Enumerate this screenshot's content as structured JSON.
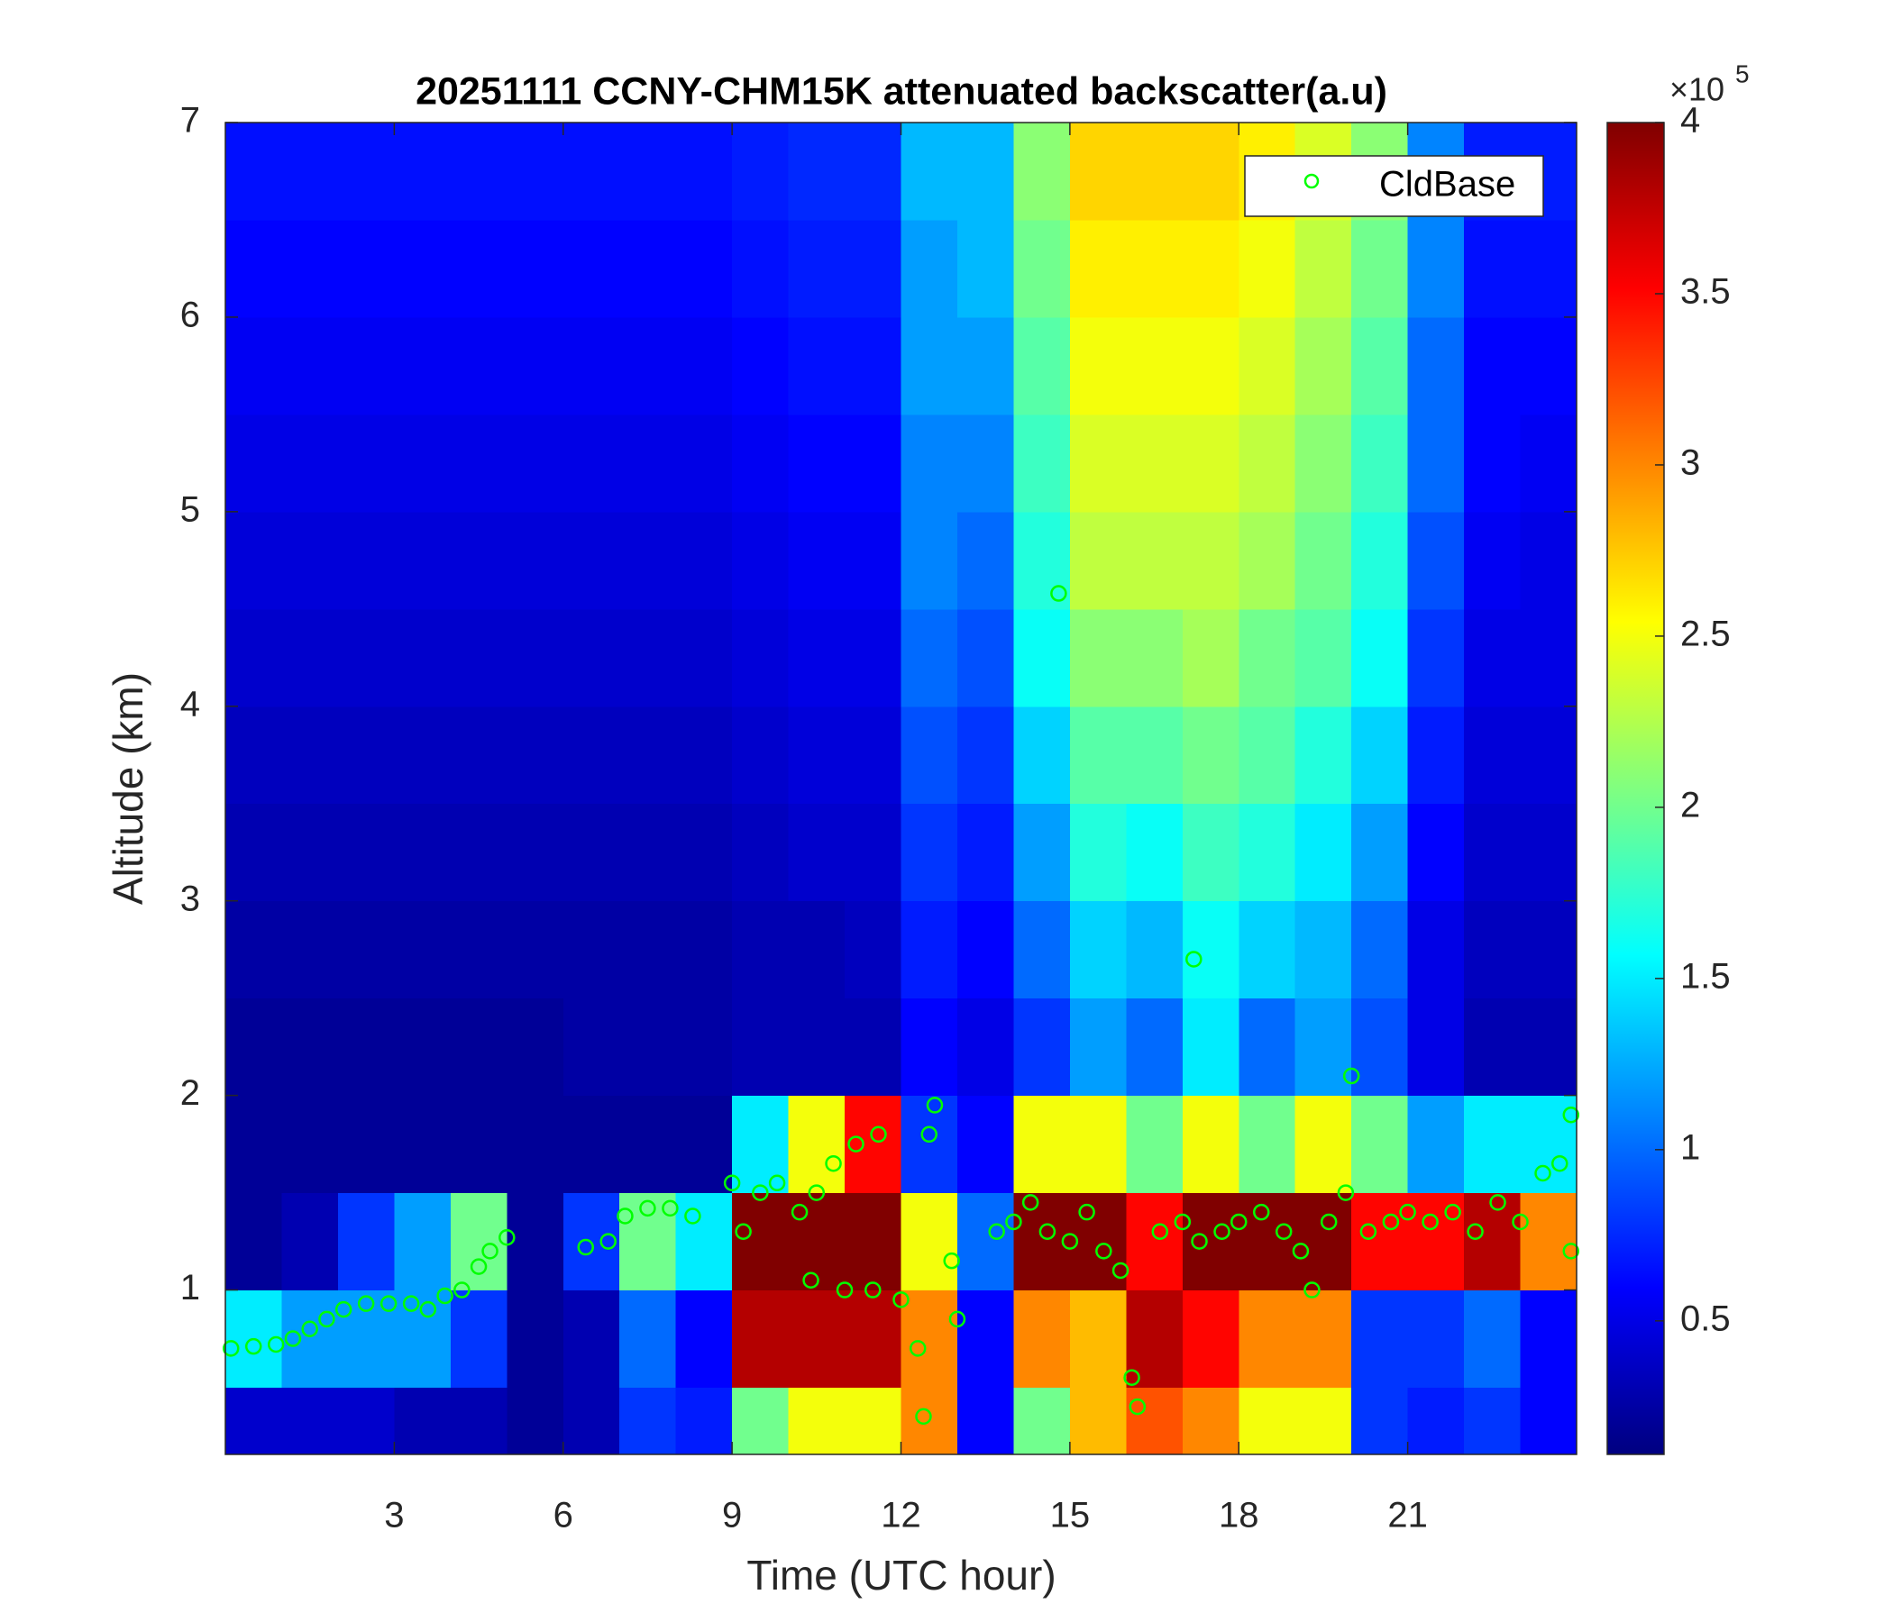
{
  "chart_data": {
    "type": "heatmap",
    "title": "20251111 CCNY-CHM15K attenuated backscatter(a.u)",
    "xlabel": "Time (UTC hour)",
    "ylabel": "Altitude (km)",
    "xlim": [
      0,
      24
    ],
    "xticks": [
      3,
      6,
      9,
      12,
      15,
      18,
      21
    ],
    "ylim": [
      0.155,
      7
    ],
    "yticks": [
      1,
      2,
      3,
      4,
      5,
      6,
      7
    ],
    "x_bins": [
      0,
      1,
      2,
      3,
      4,
      5,
      6,
      7,
      8,
      9,
      10,
      11,
      12,
      13,
      14,
      15,
      16,
      17,
      18,
      19,
      20,
      21,
      22,
      23,
      24
    ],
    "y_bins": [
      0.155,
      0.5,
      1,
      1.5,
      2,
      2.5,
      3,
      3.5,
      4,
      4.5,
      5,
      5.5,
      6,
      6.5,
      7
    ],
    "values": [
      [
        0.4,
        0.4,
        0.4,
        0.3,
        0.3,
        0.2,
        0.3,
        0.8,
        0.7,
        2.0,
        2.5,
        2.5,
        3.0,
        0.6,
        2.0,
        2.8,
        3.2,
        3.0,
        2.5,
        2.5,
        0.8,
        0.7,
        0.8,
        0.6
      ],
      [
        1.5,
        1.2,
        1.2,
        1.2,
        0.8,
        0.2,
        0.3,
        1.0,
        0.6,
        3.8,
        3.8,
        3.8,
        3.0,
        0.6,
        3.0,
        2.8,
        3.8,
        3.5,
        3.0,
        3.0,
        0.8,
        0.8,
        1.0,
        0.6
      ],
      [
        0.2,
        0.3,
        0.8,
        1.2,
        2.0,
        0.2,
        0.8,
        2.0,
        1.5,
        4.0,
        4.0,
        4.0,
        2.5,
        1.0,
        4.0,
        4.0,
        3.5,
        4.0,
        4.0,
        4.0,
        3.5,
        3.5,
        3.8,
        3.0
      ],
      [
        0.2,
        0.2,
        0.2,
        0.2,
        0.2,
        0.2,
        0.2,
        0.2,
        0.2,
        1.5,
        2.5,
        3.5,
        0.8,
        0.6,
        2.5,
        2.5,
        2.0,
        2.5,
        2.0,
        2.5,
        2.0,
        1.2,
        1.5,
        1.5
      ],
      [
        0.2,
        0.2,
        0.2,
        0.2,
        0.2,
        0.2,
        0.25,
        0.25,
        0.25,
        0.3,
        0.3,
        0.3,
        0.6,
        0.5,
        0.8,
        1.2,
        1.0,
        1.5,
        1.0,
        1.2,
        0.9,
        0.5,
        0.3,
        0.3
      ],
      [
        0.25,
        0.25,
        0.25,
        0.25,
        0.25,
        0.25,
        0.25,
        0.25,
        0.25,
        0.3,
        0.3,
        0.35,
        0.7,
        0.6,
        1.0,
        1.4,
        1.3,
        1.6,
        1.4,
        1.3,
        1.0,
        0.5,
        0.35,
        0.35
      ],
      [
        0.3,
        0.3,
        0.3,
        0.3,
        0.3,
        0.3,
        0.3,
        0.3,
        0.3,
        0.35,
        0.4,
        0.4,
        0.8,
        0.7,
        1.2,
        1.7,
        1.6,
        1.8,
        1.7,
        1.5,
        1.2,
        0.6,
        0.4,
        0.4
      ],
      [
        0.35,
        0.35,
        0.35,
        0.35,
        0.35,
        0.35,
        0.35,
        0.35,
        0.35,
        0.4,
        0.45,
        0.45,
        0.9,
        0.8,
        1.4,
        1.9,
        1.9,
        2.0,
        1.9,
        1.7,
        1.4,
        0.7,
        0.45,
        0.45
      ],
      [
        0.4,
        0.4,
        0.4,
        0.4,
        0.4,
        0.4,
        0.4,
        0.4,
        0.4,
        0.45,
        0.5,
        0.5,
        1.0,
        0.9,
        1.6,
        2.1,
        2.1,
        2.2,
        2.0,
        1.9,
        1.6,
        0.8,
        0.5,
        0.5
      ],
      [
        0.45,
        0.45,
        0.45,
        0.45,
        0.45,
        0.45,
        0.45,
        0.45,
        0.45,
        0.5,
        0.55,
        0.55,
        1.1,
        1.0,
        1.7,
        2.3,
        2.3,
        2.3,
        2.2,
        2.0,
        1.7,
        0.9,
        0.55,
        0.5
      ],
      [
        0.5,
        0.5,
        0.5,
        0.5,
        0.5,
        0.5,
        0.5,
        0.5,
        0.5,
        0.55,
        0.6,
        0.6,
        1.1,
        1.1,
        1.8,
        2.4,
        2.4,
        2.4,
        2.3,
        2.1,
        1.8,
        1.0,
        0.6,
        0.55
      ],
      [
        0.55,
        0.55,
        0.55,
        0.55,
        0.55,
        0.55,
        0.55,
        0.55,
        0.55,
        0.6,
        0.65,
        0.65,
        1.2,
        1.2,
        1.9,
        2.5,
        2.5,
        2.5,
        2.4,
        2.2,
        1.9,
        1.0,
        0.6,
        0.6
      ],
      [
        0.6,
        0.6,
        0.6,
        0.6,
        0.6,
        0.6,
        0.6,
        0.6,
        0.6,
        0.65,
        0.7,
        0.7,
        1.2,
        1.3,
        2.0,
        2.6,
        2.6,
        2.6,
        2.5,
        2.3,
        2.0,
        1.1,
        0.65,
        0.65
      ],
      [
        0.65,
        0.65,
        0.65,
        0.65,
        0.65,
        0.65,
        0.65,
        0.65,
        0.65,
        0.7,
        0.75,
        0.75,
        1.3,
        1.3,
        2.1,
        2.7,
        2.7,
        2.7,
        2.6,
        2.4,
        2.1,
        1.1,
        0.7,
        0.7
      ]
    ],
    "colormap": "jet",
    "clim": [
      0.11,
      4
    ],
    "cticks": [
      0.5,
      1,
      1.5,
      2,
      2.5,
      3,
      3.5,
      4
    ],
    "colorbar_multiplier": {
      "base": "×10",
      "exponent": "5"
    },
    "series": [
      {
        "name": "CldBase",
        "type": "scatter",
        "marker": "open-circle",
        "color": "#00ff00",
        "x": [
          0.1,
          0.5,
          0.9,
          1.2,
          1.5,
          1.8,
          2.1,
          2.5,
          2.9,
          3.3,
          3.6,
          3.9,
          4.2,
          4.5,
          4.7,
          5.0,
          6.4,
          6.8,
          7.1,
          7.5,
          7.9,
          8.3,
          9.0,
          9.2,
          9.5,
          9.8,
          10.2,
          10.5,
          10.8,
          11.2,
          11.6,
          10.4,
          11.0,
          11.5,
          12.0,
          12.3,
          12.4,
          12.5,
          12.6,
          12.9,
          13.0,
          13.7,
          14.0,
          14.3,
          14.6,
          14.8,
          15.0,
          15.3,
          15.6,
          15.9,
          16.1,
          16.2,
          16.6,
          17.0,
          17.2,
          17.3,
          17.7,
          18.0,
          18.4,
          18.8,
          19.1,
          19.3,
          19.6,
          19.9,
          20.0,
          20.3,
          20.7,
          21.0,
          21.4,
          21.8,
          22.2,
          22.6,
          23.0,
          23.4,
          23.7,
          23.9,
          23.9
        ],
        "y": [
          0.7,
          0.71,
          0.72,
          0.75,
          0.8,
          0.85,
          0.9,
          0.93,
          0.93,
          0.93,
          0.9,
          0.97,
          1.0,
          1.12,
          1.2,
          1.27,
          1.22,
          1.25,
          1.38,
          1.42,
          1.42,
          1.38,
          1.55,
          1.3,
          1.5,
          1.55,
          1.4,
          1.5,
          1.65,
          1.75,
          1.8,
          1.05,
          1.0,
          1.0,
          0.95,
          0.7,
          0.35,
          1.8,
          1.95,
          1.15,
          0.85,
          1.3,
          1.35,
          1.45,
          1.3,
          4.58,
          1.25,
          1.4,
          1.2,
          1.1,
          0.55,
          0.4,
          1.3,
          1.35,
          2.7,
          1.25,
          1.3,
          1.35,
          1.4,
          1.3,
          1.2,
          1.0,
          1.35,
          1.5,
          2.1,
          1.3,
          1.35,
          1.4,
          1.35,
          1.4,
          1.3,
          1.45,
          1.35,
          1.6,
          1.65,
          1.9,
          1.2
        ]
      }
    ],
    "legend": "upper right"
  }
}
